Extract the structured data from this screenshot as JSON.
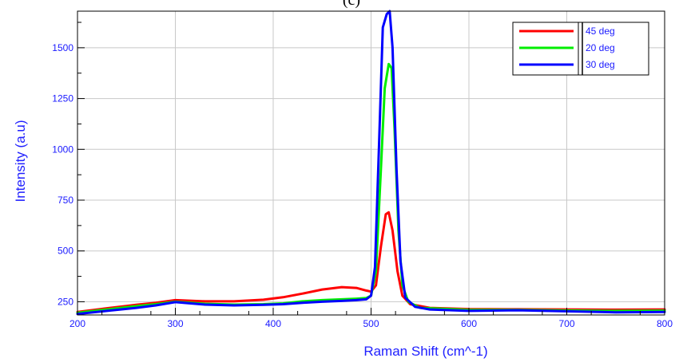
{
  "panel_label": "(c)",
  "chart_data": {
    "type": "line",
    "title": "",
    "xlabel": "Raman Shift (cm^-1)",
    "ylabel": "Intensity (a.u)",
    "xlim": [
      200,
      800
    ],
    "ylim": [
      185,
      1680
    ],
    "xticks": [
      200,
      300,
      400,
      500,
      600,
      700,
      800
    ],
    "yticks": [
      250,
      500,
      750,
      1000,
      1250,
      1500
    ],
    "grid": true,
    "legend_position": "top-right",
    "series": [
      {
        "name": "45 deg",
        "color": "#ff0000",
        "points": [
          [
            200,
            200
          ],
          [
            230,
            218
          ],
          [
            260,
            235
          ],
          [
            280,
            245
          ],
          [
            300,
            258
          ],
          [
            330,
            252
          ],
          [
            360,
            252
          ],
          [
            390,
            260
          ],
          [
            410,
            272
          ],
          [
            430,
            290
          ],
          [
            450,
            310
          ],
          [
            470,
            322
          ],
          [
            485,
            318
          ],
          [
            495,
            305
          ],
          [
            500,
            300
          ],
          [
            505,
            330
          ],
          [
            510,
            520
          ],
          [
            515,
            680
          ],
          [
            518,
            690
          ],
          [
            522,
            600
          ],
          [
            527,
            400
          ],
          [
            532,
            280
          ],
          [
            540,
            238
          ],
          [
            560,
            220
          ],
          [
            600,
            214
          ],
          [
            650,
            213
          ],
          [
            700,
            212
          ],
          [
            750,
            211
          ],
          [
            800,
            212
          ]
        ]
      },
      {
        "name": "20 deg",
        "color": "#00ee00",
        "points": [
          [
            200,
            196
          ],
          [
            230,
            212
          ],
          [
            260,
            228
          ],
          [
            280,
            238
          ],
          [
            300,
            250
          ],
          [
            330,
            240
          ],
          [
            360,
            236
          ],
          [
            390,
            238
          ],
          [
            410,
            242
          ],
          [
            430,
            252
          ],
          [
            450,
            258
          ],
          [
            470,
            262
          ],
          [
            485,
            265
          ],
          [
            495,
            268
          ],
          [
            500,
            280
          ],
          [
            505,
            400
          ],
          [
            510,
            900
          ],
          [
            514,
            1300
          ],
          [
            518,
            1420
          ],
          [
            521,
            1400
          ],
          [
            524,
            1100
          ],
          [
            528,
            600
          ],
          [
            532,
            330
          ],
          [
            538,
            250
          ],
          [
            550,
            220
          ],
          [
            600,
            210
          ],
          [
            650,
            210
          ],
          [
            700,
            207
          ],
          [
            750,
            205
          ],
          [
            800,
            206
          ]
        ]
      },
      {
        "name": "30 deg",
        "color": "#0000ff",
        "points": [
          [
            200,
            190
          ],
          [
            230,
            205
          ],
          [
            260,
            220
          ],
          [
            280,
            232
          ],
          [
            300,
            248
          ],
          [
            330,
            236
          ],
          [
            360,
            232
          ],
          [
            390,
            235
          ],
          [
            410,
            238
          ],
          [
            430,
            245
          ],
          [
            450,
            250
          ],
          [
            470,
            254
          ],
          [
            485,
            258
          ],
          [
            495,
            262
          ],
          [
            500,
            280
          ],
          [
            504,
            420
          ],
          [
            508,
            1000
          ],
          [
            512,
            1600
          ],
          [
            516,
            1665
          ],
          [
            519,
            1680
          ],
          [
            522,
            1500
          ],
          [
            526,
            900
          ],
          [
            530,
            450
          ],
          [
            535,
            270
          ],
          [
            545,
            225
          ],
          [
            560,
            212
          ],
          [
            600,
            205
          ],
          [
            650,
            208
          ],
          [
            700,
            203
          ],
          [
            750,
            198
          ],
          [
            800,
            200
          ]
        ]
      }
    ]
  }
}
